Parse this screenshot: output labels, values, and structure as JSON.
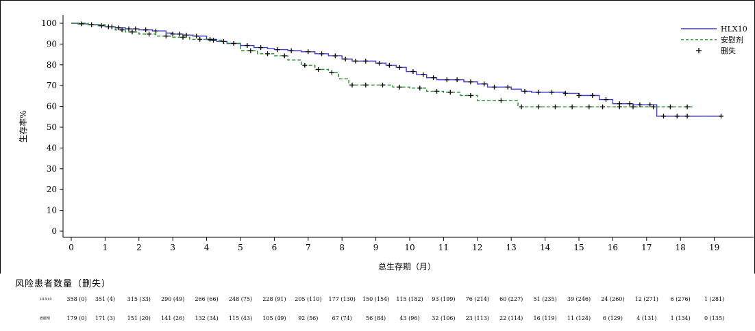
{
  "chart_data": {
    "type": "line",
    "xlabel": "总生存期（月）",
    "ylabel": "生存率%",
    "xlim": [
      0,
      19.5
    ],
    "ylim": [
      0,
      100
    ],
    "x_ticks": [
      "0",
      "1",
      "2",
      "3",
      "4",
      "5",
      "6",
      "7",
      "8",
      "9",
      "10",
      "11",
      "12",
      "13",
      "14",
      "15",
      "16",
      "17",
      "18",
      "19"
    ],
    "y_ticks": [
      "0",
      "10",
      "20",
      "30",
      "40",
      "50",
      "60",
      "70",
      "80",
      "90",
      "100"
    ],
    "grid": false,
    "legend_position": "top-right",
    "legend": {
      "hlx10": "HLX10",
      "placebo": "安慰剂",
      "censored": "删失"
    },
    "series": [
      {
        "name": "HLX10",
        "color": "#3a3ad6",
        "style": "solid",
        "x": [
          0,
          0.2,
          0.5,
          0.8,
          1.0,
          1.3,
          1.6,
          2.0,
          2.4,
          2.8,
          3.0,
          3.3,
          3.6,
          4.0,
          4.3,
          4.6,
          5.0,
          5.4,
          5.8,
          6.0,
          6.4,
          6.8,
          7.2,
          7.6,
          8.0,
          8.3,
          8.6,
          9.0,
          9.3,
          9.6,
          9.9,
          10.2,
          10.5,
          10.8,
          11.0,
          11.3,
          11.6,
          12.0,
          12.3,
          12.6,
          13.0,
          13.3,
          13.6,
          14.0,
          14.3,
          14.6,
          15.0,
          15.3,
          15.6,
          16.0,
          16.3,
          16.6,
          17.0,
          17.3,
          17.6,
          18.0,
          18.5,
          19.2
        ],
        "y": [
          100,
          99.7,
          99.3,
          98.8,
          98.3,
          97.8,
          97.3,
          96.8,
          96.3,
          95.3,
          94.8,
          94.3,
          93.8,
          92.3,
          91.3,
          90.3,
          89.3,
          88.3,
          87.8,
          87.3,
          86.8,
          86.3,
          85.3,
          84.3,
          82.8,
          81.8,
          81.8,
          80.8,
          79.8,
          78.8,
          76.8,
          75.3,
          73.8,
          72.8,
          72.8,
          72.8,
          71.8,
          70.8,
          69.3,
          69.3,
          68.3,
          67.3,
          66.8,
          66.8,
          66.8,
          66.3,
          65.3,
          65.3,
          63.3,
          61.3,
          61.3,
          60.8,
          60.8,
          55.3,
          55.3,
          55.3,
          55.3,
          55.3
        ]
      },
      {
        "name": "安慰剂",
        "color": "#1f8a1f",
        "style": "dashed",
        "x": [
          0,
          0.5,
          1.0,
          1.3,
          1.6,
          2.0,
          2.5,
          3.0,
          3.5,
          4.0,
          4.5,
          5.0,
          5.5,
          6.0,
          6.4,
          6.8,
          7.2,
          7.6,
          7.9,
          8.2,
          8.6,
          9.0,
          9.5,
          10.0,
          10.5,
          11.0,
          11.5,
          12.0,
          12.5,
          13.0,
          13.2,
          13.6,
          14.0,
          14.5,
          15.0,
          15.5,
          16.0,
          16.5,
          17.0,
          17.5,
          18.0,
          18.4
        ],
        "y": [
          100,
          99.3,
          98.3,
          96.8,
          95.8,
          94.8,
          93.8,
          93.3,
          92.3,
          91.8,
          90.3,
          86.8,
          85.3,
          84.3,
          82.3,
          79.8,
          77.8,
          76.3,
          73.3,
          70.3,
          70.3,
          70.3,
          69.3,
          68.8,
          67.3,
          66.8,
          65.3,
          62.8,
          62.8,
          62.8,
          59.8,
          59.8,
          59.8,
          59.8,
          59.8,
          59.8,
          59.8,
          59.8,
          59.8,
          59.8,
          59.8,
          59.8
        ]
      }
    ],
    "censored_hlx10_x": [
      0.3,
      0.6,
      0.9,
      1.1,
      1.4,
      1.7,
      1.9,
      2.2,
      2.5,
      3.0,
      3.2,
      3.4,
      3.7,
      4.1,
      4.5,
      5.2,
      5.6,
      6.1,
      6.5,
      7.0,
      7.4,
      7.8,
      8.1,
      8.4,
      8.7,
      9.1,
      9.4,
      9.7,
      10.1,
      10.4,
      10.7,
      11.1,
      11.4,
      11.8,
      12.2,
      12.5,
      12.9,
      13.4,
      13.8,
      14.2,
      14.6,
      15.0,
      15.4,
      15.8,
      16.2,
      16.5,
      16.8,
      17.1,
      17.5,
      17.9,
      18.2,
      19.2
    ],
    "censored_placebo_x": [
      1.2,
      1.5,
      1.8,
      2.3,
      2.8,
      3.3,
      3.8,
      4.2,
      4.8,
      5.3,
      5.8,
      6.3,
      6.9,
      7.3,
      7.7,
      8.3,
      8.7,
      9.2,
      9.7,
      10.3,
      10.8,
      11.2,
      11.8,
      12.7,
      13.3,
      13.8,
      14.3,
      14.8,
      15.3,
      15.7,
      16.2,
      16.6,
      17.2,
      17.7,
      18.2
    ],
    "risk_table": {
      "title": "风险患者数量（删失）",
      "rows": [
        {
          "name": "HLX10",
          "values": [
            "358 (0)",
            "351 (4)",
            "315 (33)",
            "290 (49)",
            "266 (66)",
            "248 (75)",
            "228 (91)",
            "205 (110)",
            "177 (130)",
            "150 (154)",
            "115 (182)",
            "93 (199)",
            "76 (214)",
            "60 (227)",
            "51 (235)",
            "39 (246)",
            "24 (260)",
            "12 (271)",
            "6 (276)",
            "1 (281)"
          ]
        },
        {
          "name": "安慰剂",
          "values": [
            "179 (0)",
            "171 (3)",
            "151 (20)",
            "141 (26)",
            "132 (34)",
            "115 (43)",
            "105 (49)",
            "92 (56)",
            "67 (74)",
            "56 (84)",
            "43 (96)",
            "32 (106)",
            "23 (113)",
            "22 (114)",
            "16 (119)",
            "11 (124)",
            "6 (129)",
            "4 (131)",
            "1 (134)",
            "0 (135)"
          ]
        }
      ]
    }
  }
}
